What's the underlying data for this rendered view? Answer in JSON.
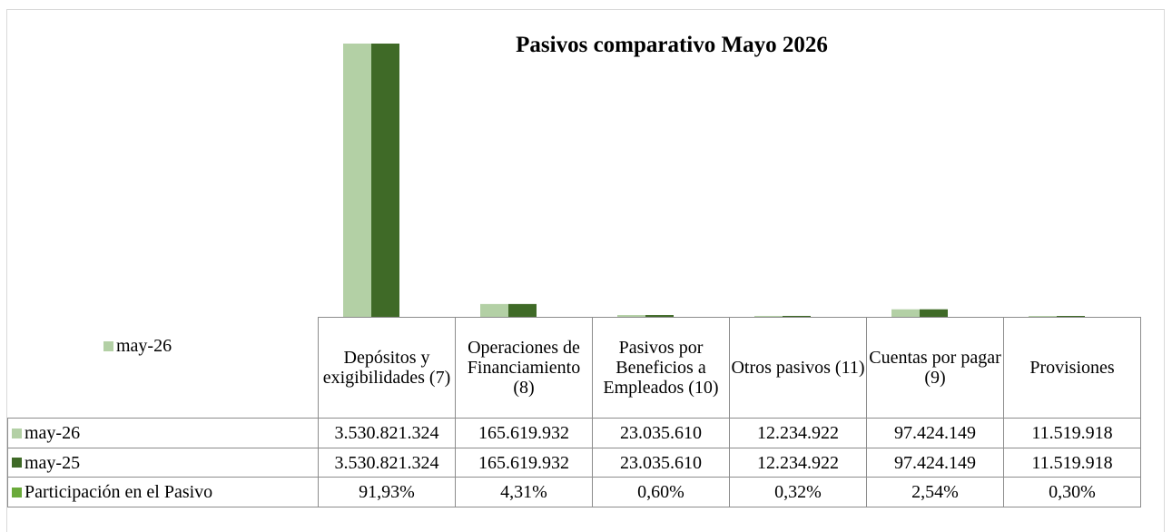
{
  "chart_data": {
    "type": "bar",
    "title": "Pasivos comparativo Mayo  2026",
    "categories": [
      "Depósitos y exigibilidades (7)",
      "Operaciones de Financiamiento (8)",
      "Pasivos por Beneficios a Empleados (10)",
      "Otros pasivos (11)",
      "Cuentas por pagar (9)",
      "Provisiones"
    ],
    "series": [
      {
        "name": "may-26",
        "color": "#b3d0a5",
        "values": [
          3530821324,
          165619932,
          23035610,
          12234922,
          97424149,
          11519918
        ],
        "value_labels": [
          "3.530.821.324",
          "165.619.932",
          "23.035.610",
          "12.234.922",
          "97.424.149",
          "11.519.918"
        ]
      },
      {
        "name": "may-25",
        "color": "#3f6a27",
        "values": [
          3530821324,
          165619932,
          23035610,
          12234922,
          97424149,
          11519918
        ],
        "value_labels": [
          "3.530.821.324",
          "165.619.932",
          "23.035.610",
          "12.234.922",
          "97.424.149",
          "11.519.918"
        ]
      },
      {
        "name": "Participación en el Pasivo",
        "color": "#6aaa3a",
        "values": [
          91.93,
          4.31,
          0.6,
          0.32,
          2.54,
          0.3
        ],
        "value_labels": [
          "91,93%",
          "4,31%",
          "0,60%",
          "0,32%",
          "2,54%",
          "0,30%"
        ]
      }
    ]
  }
}
